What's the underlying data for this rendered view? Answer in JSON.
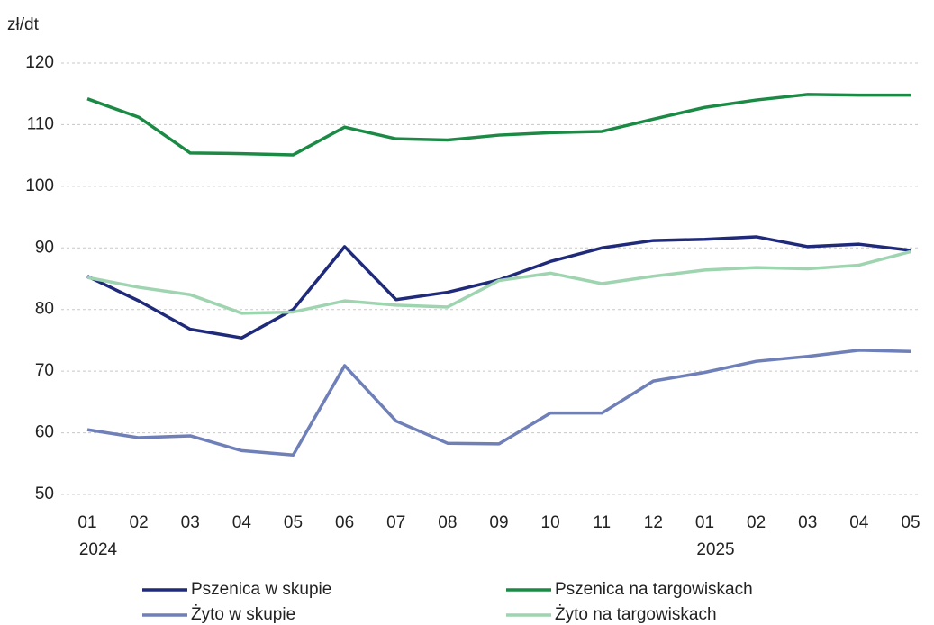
{
  "chart_data": {
    "type": "line",
    "y_unit": "zł/dt",
    "categories": [
      [
        "01",
        "2024"
      ],
      [
        "02"
      ],
      [
        "03"
      ],
      [
        "04"
      ],
      [
        "05"
      ],
      [
        "06"
      ],
      [
        "07"
      ],
      [
        "08"
      ],
      [
        "09"
      ],
      [
        "10"
      ],
      [
        "11"
      ],
      [
        "12"
      ],
      [
        "01",
        "2025"
      ],
      [
        "02"
      ],
      [
        "03"
      ],
      [
        "04"
      ],
      [
        "05"
      ]
    ],
    "ylim": [
      50,
      120
    ],
    "yticks": [
      50,
      60,
      70,
      80,
      90,
      100,
      110,
      120
    ],
    "grid": true,
    "legend": "bottom",
    "series": [
      {
        "name": "Pszenica w skupie",
        "color": "#1f2a7a",
        "values": [
          85.4,
          81.4,
          76.8,
          75.4,
          80.0,
          90.2,
          81.6,
          82.8,
          84.8,
          87.8,
          90.0,
          91.2,
          91.4,
          91.8,
          90.2,
          90.6,
          89.6
        ]
      },
      {
        "name": "Pszenica na targowiskach",
        "color": "#1a8a45",
        "values": [
          114.2,
          111.2,
          105.4,
          105.3,
          105.1,
          109.6,
          107.7,
          107.5,
          108.3,
          108.7,
          108.9,
          110.9,
          112.8,
          114.0,
          114.9,
          114.8,
          114.8
        ]
      },
      {
        "name": "Żyto w skupie",
        "color": "#6f7fb8",
        "values": [
          60.5,
          59.2,
          59.5,
          57.1,
          56.4,
          70.9,
          61.9,
          58.3,
          58.2,
          63.2,
          63.2,
          68.4,
          69.8,
          71.6,
          72.4,
          73.4,
          73.2
        ]
      },
      {
        "name": "Żyto na targowiskach",
        "color": "#9fd4b0",
        "values": [
          85.2,
          83.6,
          82.4,
          79.4,
          79.6,
          81.4,
          80.7,
          80.4,
          84.7,
          85.9,
          84.2,
          85.4,
          86.4,
          86.8,
          86.6,
          87.2,
          89.4
        ]
      }
    ]
  }
}
